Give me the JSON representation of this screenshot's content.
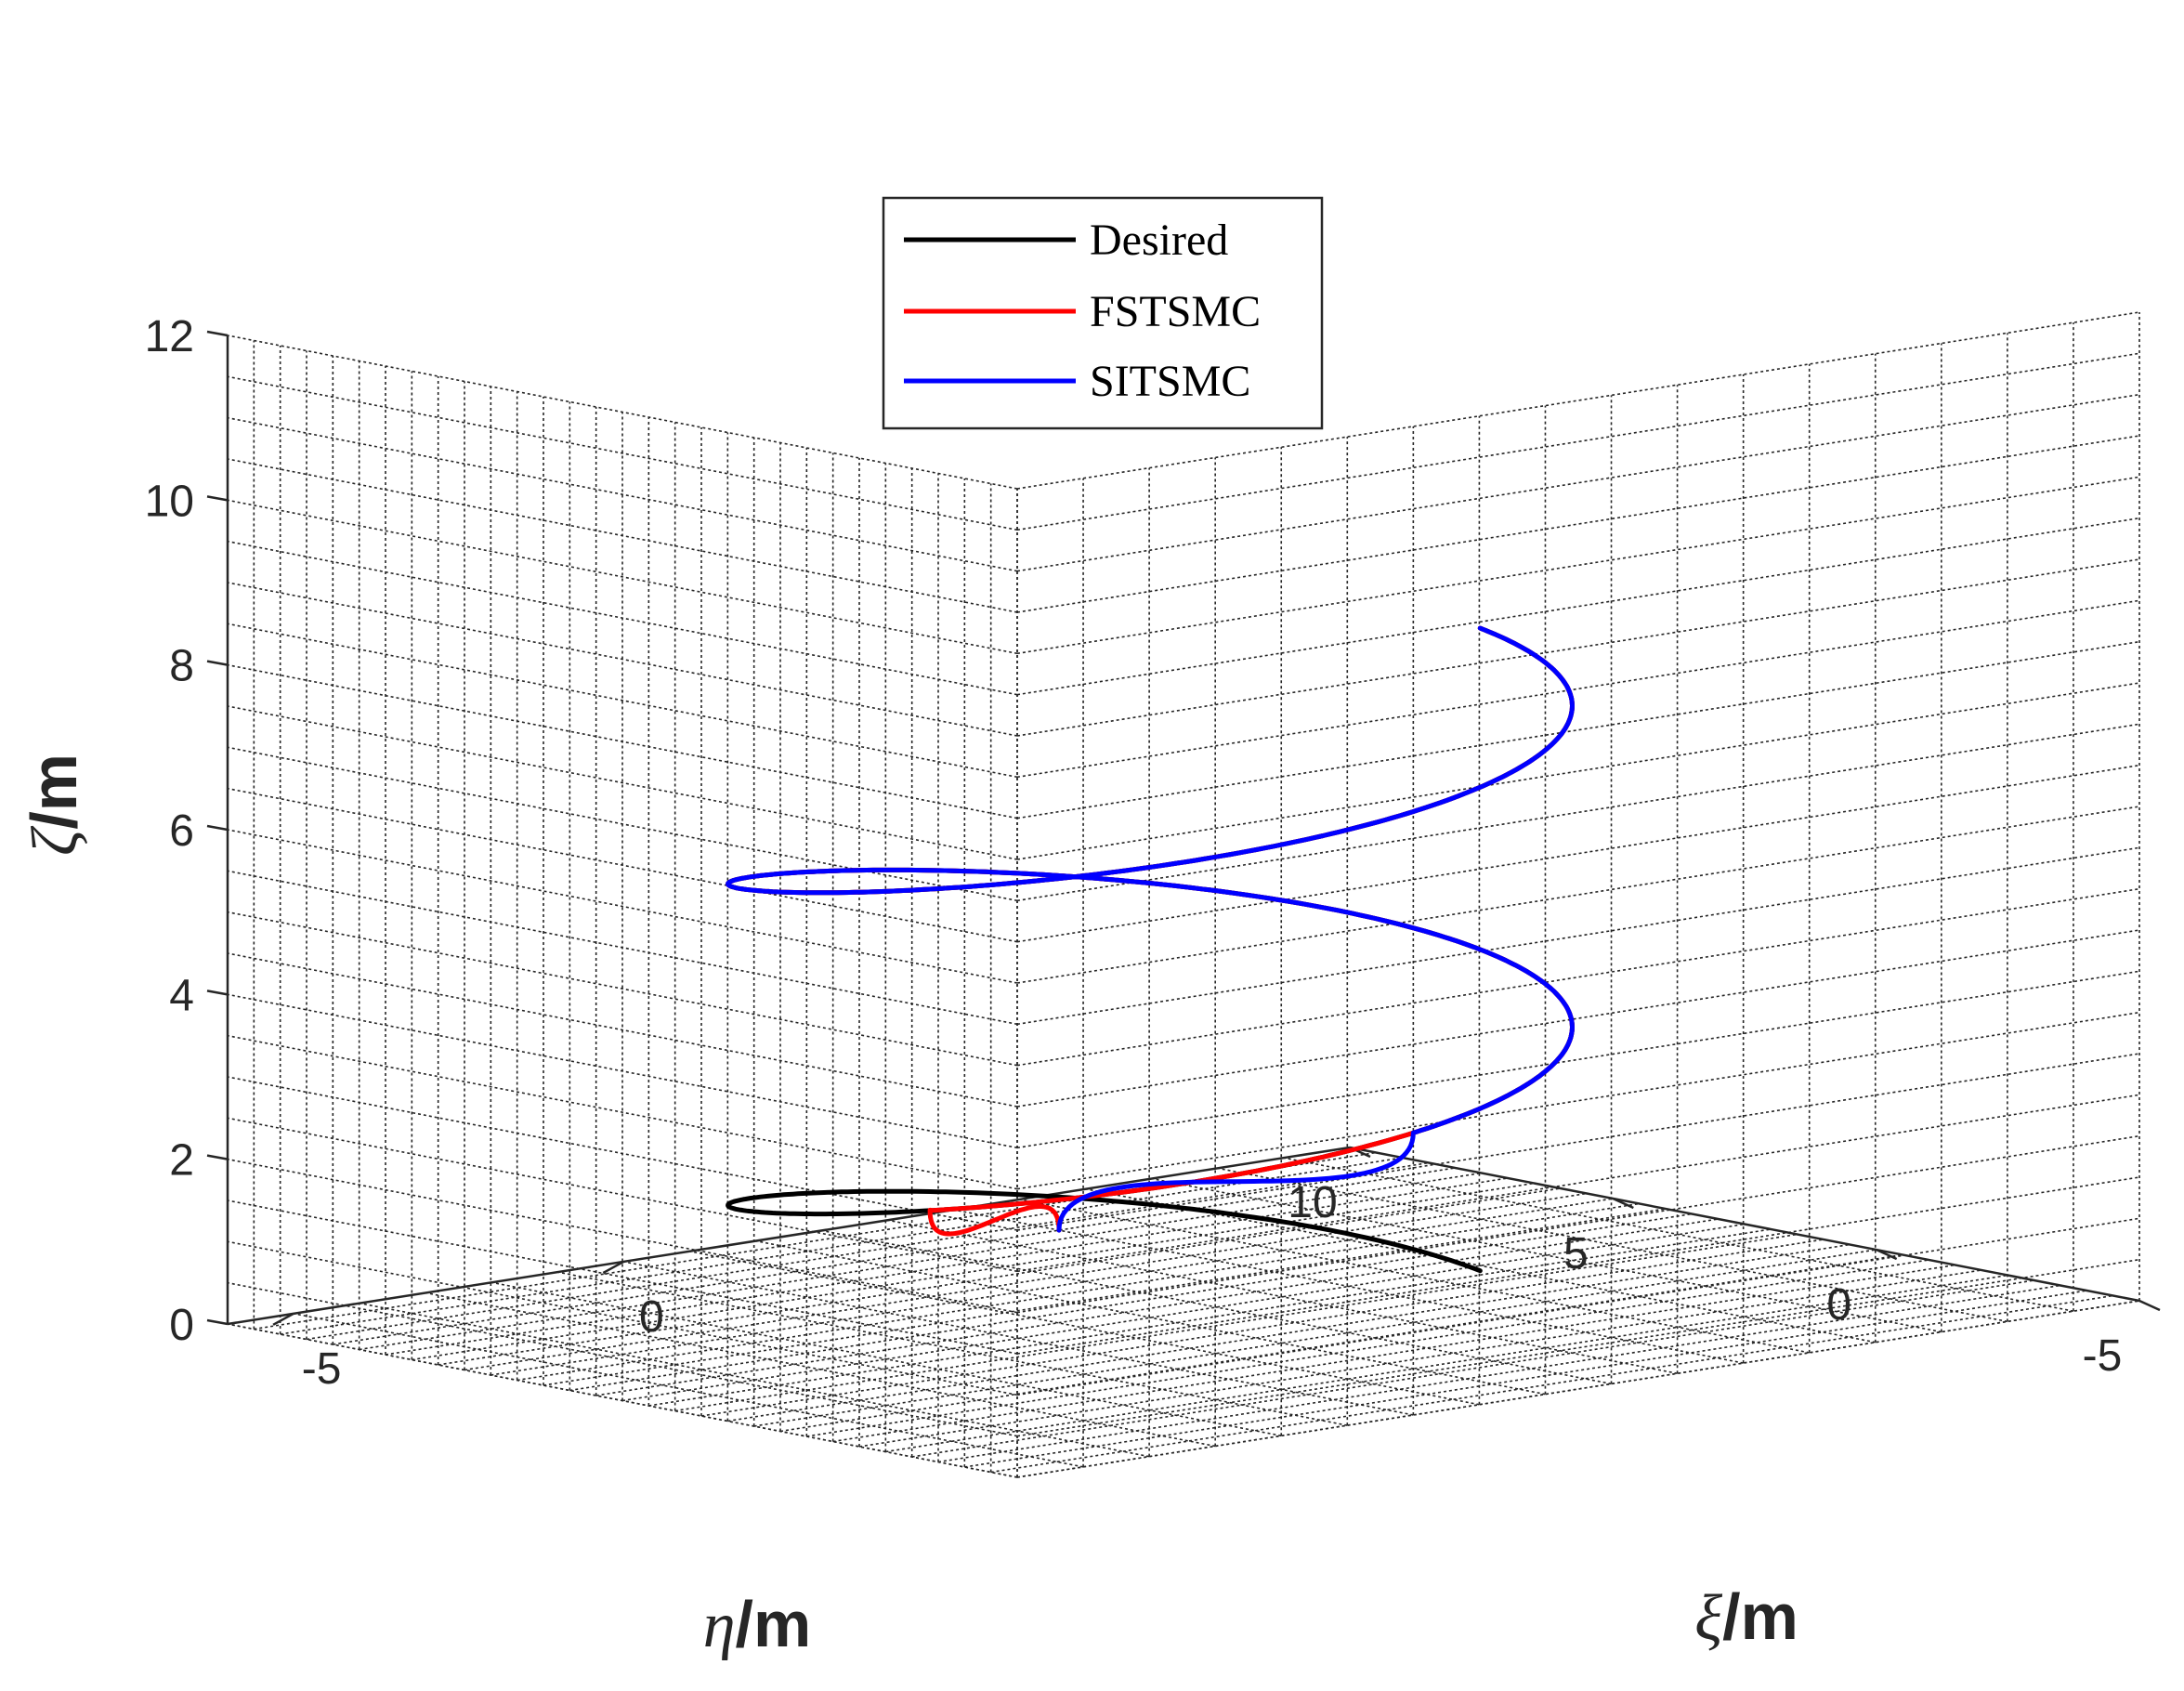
{
  "chart_data": {
    "type": "line3d",
    "title": "",
    "xlabel": {
      "symbol": "ξ",
      "unit": "/m"
    },
    "ylabel": {
      "symbol": "η",
      "unit": "/m"
    },
    "zlabel": {
      "symbol": "ζ",
      "unit": "/m"
    },
    "xlim": [
      -6,
      11
    ],
    "ylim": [
      -5,
      10
    ],
    "zlim": [
      0,
      12
    ],
    "x_ticks": [
      "-5",
      "0"
    ],
    "y_ticks": [
      "-5",
      "0",
      "5",
      "10"
    ],
    "z_ticks": [
      "0",
      "2",
      "4",
      "6",
      "8",
      "10",
      "12"
    ],
    "grid": true,
    "legend_position": "top-center",
    "colors": {
      "Desired": "#000000",
      "FSTSMC": "#ff0000",
      "SITSMC": "#0000ff"
    },
    "series": [
      {
        "name": "Desired",
        "helix": {
          "center_x": 0,
          "center_y": 0,
          "radius": 5,
          "phase_start_deg": 0,
          "turns": 2,
          "z_start": 0.5,
          "z_end": 8.3
        },
        "approach": null
      },
      {
        "name": "FSTSMC",
        "helix": {
          "center_x": 0,
          "center_y": 0,
          "radius": 5,
          "phase_start_deg": 0,
          "turns": 2,
          "z_start": 0.5,
          "z_end": 8.3
        },
        "approach": {
          "start": [
            5,
            8,
            0
          ],
          "join_phase_deg": 200
        }
      },
      {
        "name": "SITSMC",
        "helix": {
          "center_x": 0,
          "center_y": 0,
          "radius": 5,
          "phase_start_deg": 0,
          "turns": 2,
          "z_start": 0.5,
          "z_end": 8.3
        },
        "approach": {
          "start": [
            5,
            8,
            0
          ],
          "join_phase_deg": 270
        }
      }
    ]
  }
}
